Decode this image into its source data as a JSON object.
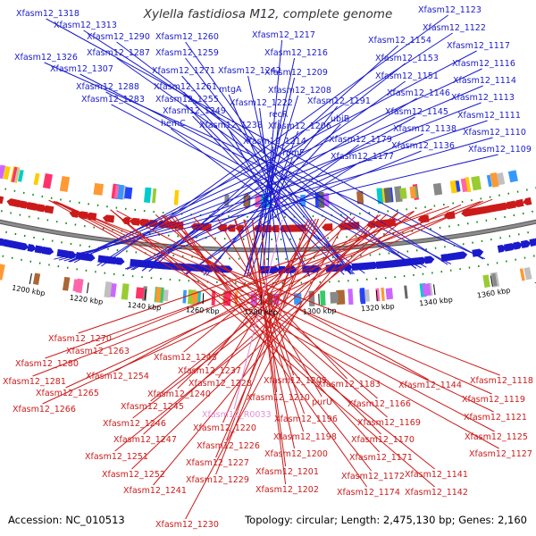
{
  "title": "Xylella fastidiosa M12, complete genome",
  "footer": {
    "accession": "Accession: NC_010513",
    "topology": "Topology: circular; Length: 2,475,130 bp; Genes: 2,160"
  },
  "colors": {
    "forward": "#1a1acc",
    "reverse": "#cc1a1a",
    "rna": "#e090d8",
    "backbone": "#8c8c8c",
    "tick": "#118811"
  },
  "scale_labels": [
    {
      "text": "1380 kbp"
    },
    {
      "text": "1360 kbp"
    },
    {
      "text": "1340 kbp"
    },
    {
      "text": "1320 kbp"
    },
    {
      "text": "1300 kbp"
    },
    {
      "text": "1280 kbp"
    },
    {
      "text": "1260 kbp"
    },
    {
      "text": "1240 kbp"
    },
    {
      "text": "1220 kbp"
    },
    {
      "text": "1200 kbp"
    }
  ],
  "forward_labels": [
    "Xfasm12_1318",
    "Xfasm12_1313",
    "Xfasm12_1326",
    "Xfasm12_1290",
    "Xfasm12_1260",
    "Xfasm12_1287",
    "Xfasm12_1259",
    "Xfasm12_1307",
    "Xfasm12_1271",
    "Xfasm12_1242",
    "Xfasm12_1288",
    "Xfasm12_1261",
    "Xfasm12_1283",
    "Xfasm12_1255",
    "Xfasm12_1249",
    "hemC",
    "mtgA",
    "Xfasm12_1222",
    "Xfasm12_1238",
    "Xfasm12_1217",
    "Xfasm12_1216",
    "Xfasm12_1209",
    "Xfasm12_1208",
    "recR",
    "Xfasm12_1206",
    "Xfasm12_1214",
    "rpmF",
    "Xfasm12_1191",
    "ubiB",
    "Xfasm12_1179",
    "Xfasm12_1177",
    "Xfasm12_1154",
    "Xfasm12_1153",
    "Xfasm12_1151",
    "Xfasm12_1146",
    "Xfasm12_1145",
    "Xfasm12_1138",
    "Xfasm12_1136",
    "Xfasm12_1123",
    "Xfasm12_1122",
    "Xfasm12_1117",
    "Xfasm12_1116",
    "Xfasm12_1114",
    "Xfasm12_1113",
    "Xfasm12_1111",
    "Xfasm12_1110",
    "Xfasm12_1109"
  ],
  "reverse_labels": [
    "Xfasm12_1270",
    "Xfasm12_1263",
    "Xfasm12_1280",
    "Xfasm12_1243",
    "Xfasm12_1281",
    "Xfasm12_1254",
    "Xfasm12_1237",
    "Xfasm12_1265",
    "Xfasm12_1228",
    "Xfasm12_1205",
    "Xfasm12_1183",
    "Xfasm12_1144",
    "Xfasm12_1118",
    "Xfasm12_1245",
    "Xfasm12_1240",
    "Xfasm12_1210",
    "Xfasm12_1119",
    "Xfasm12_1266",
    "Xfasm12_1166",
    "purU",
    "Xfasm12_1196",
    "Xfasm12_1169",
    "Xfasm12_1121",
    "Xfasm12_1246",
    "Xfasm12_1220",
    "Xfasm12_1198",
    "Xfasm12_1170",
    "Xfasm12_1125",
    "Xfasm12_1247",
    "Xfasm12_1226",
    "Xfasm12_1200",
    "Xfasm12_1251",
    "Xfasm12_1227",
    "Xfasm12_1171",
    "Xfasm12_1127",
    "Xfasm12_1201",
    "Xfasm12_1252",
    "Xfasm12_1229",
    "Xfasm12_1172",
    "Xfasm12_1141",
    "Xfasm12_1241",
    "Xfasm12_1202",
    "Xfasm12_1174",
    "Xfasm12_1142",
    "Xfasm12_1230"
  ],
  "rna_labels": [
    "Xfasm12_R0033"
  ]
}
